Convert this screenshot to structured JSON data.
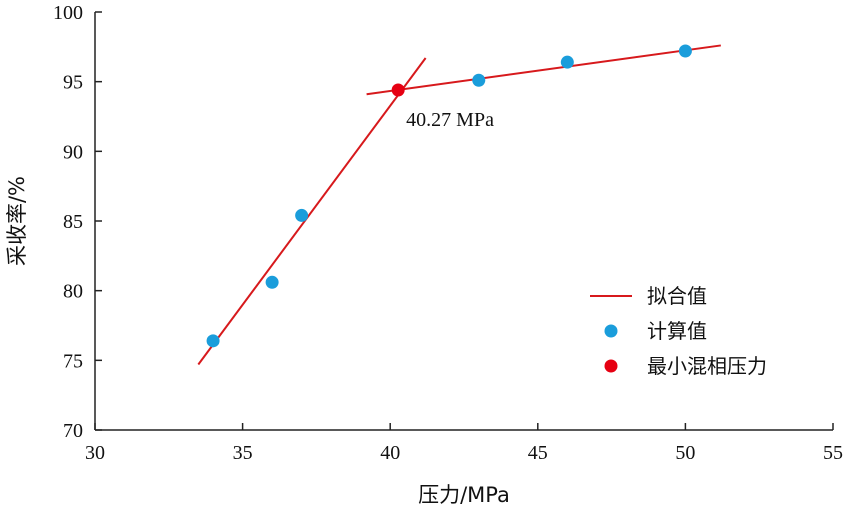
{
  "chart_data": {
    "type": "scatter",
    "title": "",
    "xlabel": "压力/MPa",
    "ylabel": "采收率/%",
    "xlim": [
      30,
      55
    ],
    "ylim": [
      70,
      100
    ],
    "xticks": [
      30,
      35,
      40,
      45,
      50,
      55
    ],
    "yticks": [
      70,
      75,
      80,
      85,
      90,
      95,
      100
    ],
    "grid": false,
    "legend_position": "right-center",
    "series": [
      {
        "name": "计算值",
        "kind": "scatter",
        "color": "#1a9ddb",
        "points": [
          {
            "x": 34,
            "y": 76.4
          },
          {
            "x": 36,
            "y": 80.6
          },
          {
            "x": 37,
            "y": 85.4
          },
          {
            "x": 43,
            "y": 95.1
          },
          {
            "x": 46,
            "y": 96.4
          },
          {
            "x": 50,
            "y": 97.2
          }
        ]
      },
      {
        "name": "拟合值",
        "kind": "line",
        "color": "#d7191c",
        "segments": [
          [
            {
              "x": 33.5,
              "y": 74.7
            },
            {
              "x": 41.2,
              "y": 96.7
            }
          ],
          [
            {
              "x": 39.2,
              "y": 94.1
            },
            {
              "x": 51.2,
              "y": 97.6
            }
          ]
        ]
      },
      {
        "name": "最小混相压力",
        "kind": "scatter",
        "color": "#e60012",
        "points": [
          {
            "x": 40.27,
            "y": 94.4
          }
        ]
      }
    ],
    "annotations": [
      {
        "text": "40.27 MPa",
        "x": 40.27,
        "y": 94.4
      }
    ],
    "legend": [
      {
        "label": "拟合值",
        "kind": "line",
        "color": "#d7191c"
      },
      {
        "label": "计算值",
        "kind": "marker",
        "color": "#1a9ddb"
      },
      {
        "label": "最小混相压力",
        "kind": "marker",
        "color": "#e60012"
      }
    ]
  }
}
